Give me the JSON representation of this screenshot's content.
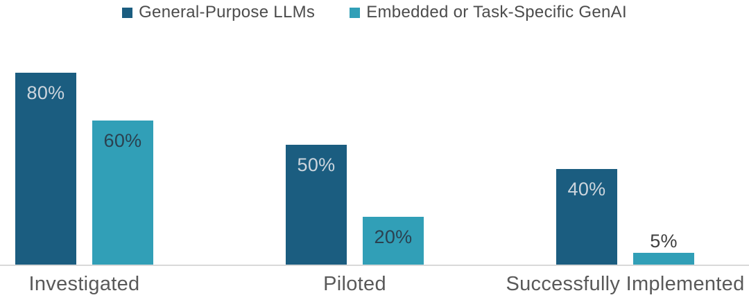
{
  "chart_data": {
    "type": "bar",
    "title": "",
    "categories": [
      "Investigated",
      "Piloted",
      "Successfully Implemented"
    ],
    "series": [
      {
        "name": "General-Purpose LLMs",
        "color": "#1b5d80",
        "values": [
          80,
          50,
          40
        ],
        "labels": [
          "80%",
          "50%",
          "40%"
        ],
        "label_color_inside": "#ccd5dd"
      },
      {
        "name": "Embedded or Task-Specific GenAI",
        "color": "#319fb7",
        "values": [
          60,
          20,
          5
        ],
        "labels": [
          "60%",
          "20%",
          "5%"
        ],
        "label_color_inside": "#2b4150"
      }
    ],
    "label_color_outside": "#3f3f3f",
    "ylim": [
      0,
      100
    ],
    "grid": false,
    "legend_position": "top",
    "axis_line_color": "#d9d9d9",
    "category_label_color": "#595959",
    "legend_text_color": "#4c4c4c"
  }
}
